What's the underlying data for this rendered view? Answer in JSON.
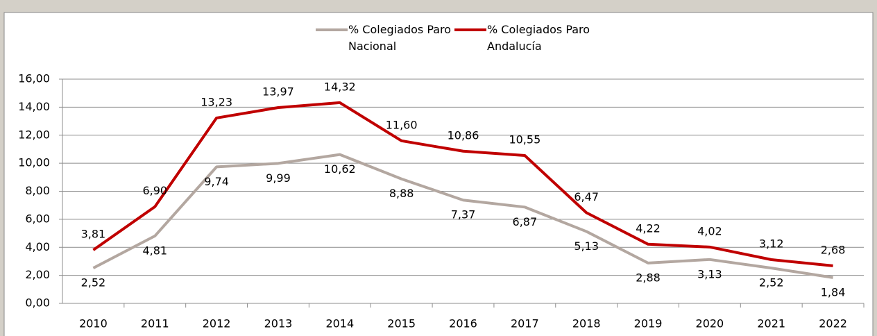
{
  "chart_data": {
    "type": "line",
    "categories": [
      "2010",
      "2011",
      "2012",
      "2013",
      "2014",
      "2015",
      "2016",
      "2017",
      "2018",
      "2019",
      "2020",
      "2021",
      "2022"
    ],
    "series": [
      {
        "name": "% Colegiados Paro Nacional",
        "color": "#b3a7a0",
        "values": [
          2.52,
          4.81,
          9.74,
          9.99,
          10.62,
          8.88,
          7.37,
          6.87,
          5.13,
          2.88,
          3.13,
          2.52,
          1.84
        ],
        "value_labels": [
          "2,52",
          "4,81",
          "9,74",
          "9,99",
          "10,62",
          "8,88",
          "7,37",
          "6,87",
          "5,13",
          "2,88",
          "3,13",
          "2,52",
          "1,84"
        ]
      },
      {
        "name": "% Colegiados Paro Andalucía",
        "color": "#c00000",
        "values": [
          3.81,
          6.9,
          13.23,
          13.97,
          14.32,
          11.6,
          10.86,
          10.55,
          6.47,
          4.22,
          4.02,
          3.12,
          2.68
        ],
        "value_labels": [
          "3,81",
          "6,90",
          "13,23",
          "13,97",
          "14,32",
          "11,60",
          "10,86",
          "10,55",
          "6,47",
          "4,22",
          "4,02",
          "3,12",
          "2,68"
        ]
      }
    ],
    "ylim": [
      0,
      16
    ],
    "yticks": [
      {
        "value": 0,
        "label": "0,00"
      },
      {
        "value": 2,
        "label": "2,00"
      },
      {
        "value": 4,
        "label": "4,00"
      },
      {
        "value": 6,
        "label": "6,00"
      },
      {
        "value": 8,
        "label": "8,00"
      },
      {
        "value": 10,
        "label": "10,00"
      },
      {
        "value": 12,
        "label": "12,00"
      },
      {
        "value": 14,
        "label": "14,00"
      },
      {
        "value": 16,
        "label": "16,00"
      }
    ],
    "grid": true,
    "legend": "top"
  }
}
